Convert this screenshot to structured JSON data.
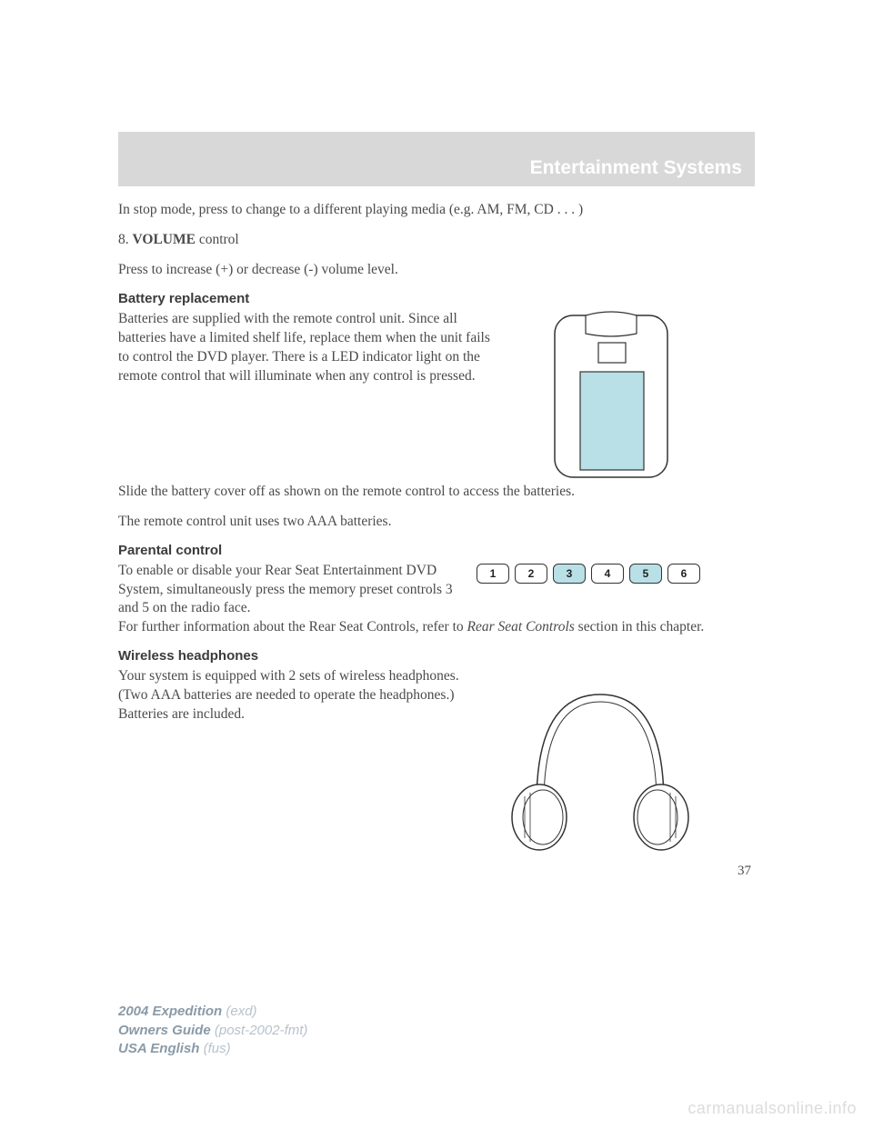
{
  "header": {
    "title": "Entertainment Systems"
  },
  "intro": {
    "stopmode": "In stop mode, press to change to a different playing media (e.g. AM, FM, CD . . . )",
    "item8_num": "8. ",
    "item8_bold": "VOLUME",
    "item8_rest": " control",
    "volume_desc": "Press to increase (+) or decrease (-) volume level."
  },
  "battery": {
    "heading": "Battery replacement",
    "p1": "Batteries are supplied with the remote control unit. Since all batteries have a limited shelf life, replace them when the unit fails to control the DVD player. There is a LED indicator light on the remote control that will illuminate when any control is pressed.",
    "p2": "Slide the battery cover off as shown on the remote control to access the batteries.",
    "p3": "The remote control unit uses two AAA batteries."
  },
  "parental": {
    "heading": "Parental control",
    "p1": "To enable or disable your Rear Seat Entertainment DVD System, simultaneously press the memory preset controls 3 and 5 on the radio face.",
    "p2_a": "For further information about the Rear Seat Controls, refer to ",
    "p2_i": "Rear Seat Controls",
    "p2_b": " section in this chapter.",
    "buttons": [
      "1",
      "2",
      "3",
      "4",
      "5",
      "6"
    ],
    "highlighted": [
      false,
      false,
      true,
      false,
      true,
      false
    ]
  },
  "wireless": {
    "heading": "Wireless headphones",
    "p1": "Your system is equipped with 2 sets of wireless headphones. (Two AAA batteries are needed to operate the headphones.) Batteries are included."
  },
  "page_number": "37",
  "footer": {
    "l1a": "2004 Expedition ",
    "l1b": "(exd)",
    "l2a": "Owners Guide ",
    "l2b": "(post-2002-fmt)",
    "l3a": "USA English ",
    "l3b": "(fus)"
  },
  "watermark": "carmanualsonline.info",
  "colors": {
    "header_bg": "#d8d8d8",
    "header_text": "#ffffff",
    "body_text": "#4a4a4a",
    "highlight_fill": "#b8e0e6",
    "stroke": "#333333"
  }
}
